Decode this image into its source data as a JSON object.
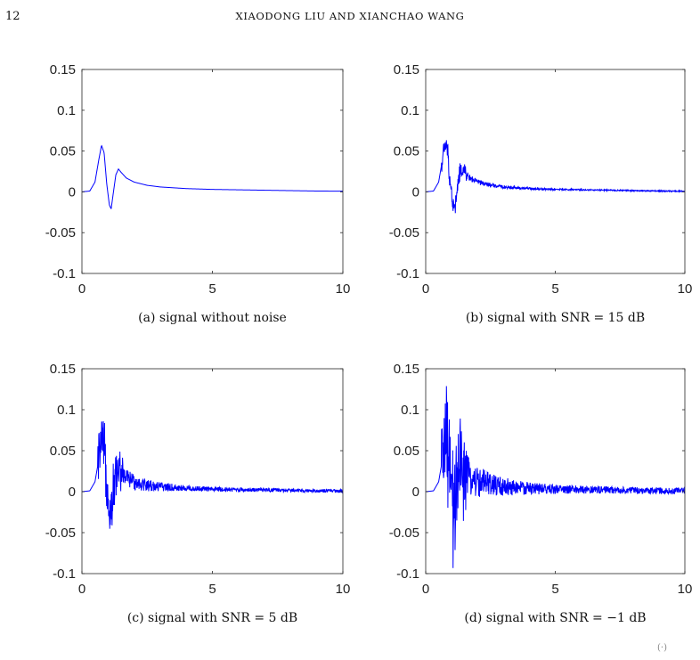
{
  "page": {
    "number": "12",
    "running_head": "XIAODONG LIU AND XIANCHAO WANG",
    "footer_mark": "(·)"
  },
  "colors": {
    "signal": "#0000ff",
    "axis": "#262626"
  },
  "chart_data": [
    {
      "type": "line",
      "caption": "(a) signal without noise",
      "xlim": [
        0,
        10
      ],
      "ylim": [
        -0.1,
        0.15
      ],
      "xticks": [
        "0",
        "5",
        "10"
      ],
      "yticks": [
        "-0.1",
        "-0.05",
        "0",
        "0.05",
        "0.1",
        "0.15"
      ],
      "noise_level": 0,
      "x": [
        0,
        0.3,
        0.5,
        0.65,
        0.75,
        0.85,
        0.95,
        1.05,
        1.12,
        1.2,
        1.3,
        1.4,
        1.5,
        1.7,
        2.0,
        2.5,
        3.0,
        4.0,
        5.0,
        6.0,
        7.0,
        8.0,
        9.0,
        10.0
      ],
      "y": [
        0,
        0.001,
        0.012,
        0.04,
        0.057,
        0.048,
        0.01,
        -0.016,
        -0.021,
        -0.002,
        0.021,
        0.028,
        0.024,
        0.017,
        0.012,
        0.008,
        0.006,
        0.004,
        0.003,
        0.0025,
        0.002,
        0.0015,
        0.001,
        0.0008
      ]
    },
    {
      "type": "line",
      "caption": "(b) signal with SNR = 15 dB",
      "xlim": [
        0,
        10
      ],
      "ylim": [
        -0.1,
        0.15
      ],
      "xticks": [
        "0",
        "5",
        "10"
      ],
      "yticks": [
        "-0.1",
        "-0.05",
        "0",
        "0.05",
        "0.1",
        "0.15"
      ],
      "noise_level": 0.006,
      "x": [
        0,
        0.3,
        0.5,
        0.65,
        0.75,
        0.85,
        0.95,
        1.05,
        1.12,
        1.2,
        1.3,
        1.4,
        1.5,
        1.7,
        2.0,
        2.5,
        3.0,
        4.0,
        5.0,
        6.0,
        7.0,
        8.0,
        9.0,
        10.0
      ],
      "y": [
        0,
        0.001,
        0.012,
        0.04,
        0.057,
        0.048,
        0.01,
        -0.016,
        -0.021,
        -0.002,
        0.021,
        0.028,
        0.024,
        0.017,
        0.012,
        0.008,
        0.006,
        0.004,
        0.003,
        0.0025,
        0.002,
        0.0015,
        0.001,
        0.0008
      ]
    },
    {
      "type": "line",
      "caption": "(c) signal with SNR = 5 dB",
      "xlim": [
        0,
        10
      ],
      "ylim": [
        -0.1,
        0.15
      ],
      "xticks": [
        "0",
        "5",
        "10"
      ],
      "yticks": [
        "-0.1",
        "-0.05",
        "0",
        "0.05",
        "0.1",
        "0.15"
      ],
      "noise_level": 0.017,
      "x": [
        0,
        0.3,
        0.5,
        0.65,
        0.75,
        0.85,
        0.95,
        1.05,
        1.12,
        1.2,
        1.3,
        1.4,
        1.5,
        1.7,
        2.0,
        2.5,
        3.0,
        4.0,
        5.0,
        6.0,
        7.0,
        8.0,
        9.0,
        10.0
      ],
      "y": [
        0,
        0.001,
        0.012,
        0.04,
        0.057,
        0.048,
        0.01,
        -0.016,
        -0.021,
        -0.002,
        0.021,
        0.028,
        0.024,
        0.017,
        0.012,
        0.008,
        0.006,
        0.004,
        0.003,
        0.0025,
        0.002,
        0.0015,
        0.001,
        0.0008
      ]
    },
    {
      "type": "line",
      "caption": "(d) signal with SNR = −1 dB",
      "xlim": [
        0,
        10
      ],
      "ylim": [
        -0.1,
        0.15
      ],
      "xticks": [
        "0",
        "5",
        "10"
      ],
      "yticks": [
        "-0.1",
        "-0.05",
        "0",
        "0.05",
        "0.1",
        "0.15"
      ],
      "noise_level": 0.034,
      "x": [
        0,
        0.3,
        0.5,
        0.65,
        0.75,
        0.85,
        0.95,
        1.05,
        1.12,
        1.2,
        1.3,
        1.4,
        1.5,
        1.7,
        2.0,
        2.5,
        3.0,
        4.0,
        5.0,
        6.0,
        7.0,
        8.0,
        9.0,
        10.0
      ],
      "y": [
        0,
        0.001,
        0.012,
        0.04,
        0.057,
        0.048,
        0.01,
        -0.016,
        -0.021,
        -0.002,
        0.021,
        0.028,
        0.024,
        0.017,
        0.012,
        0.008,
        0.006,
        0.004,
        0.003,
        0.0025,
        0.002,
        0.0015,
        0.001,
        0.0008
      ]
    }
  ]
}
